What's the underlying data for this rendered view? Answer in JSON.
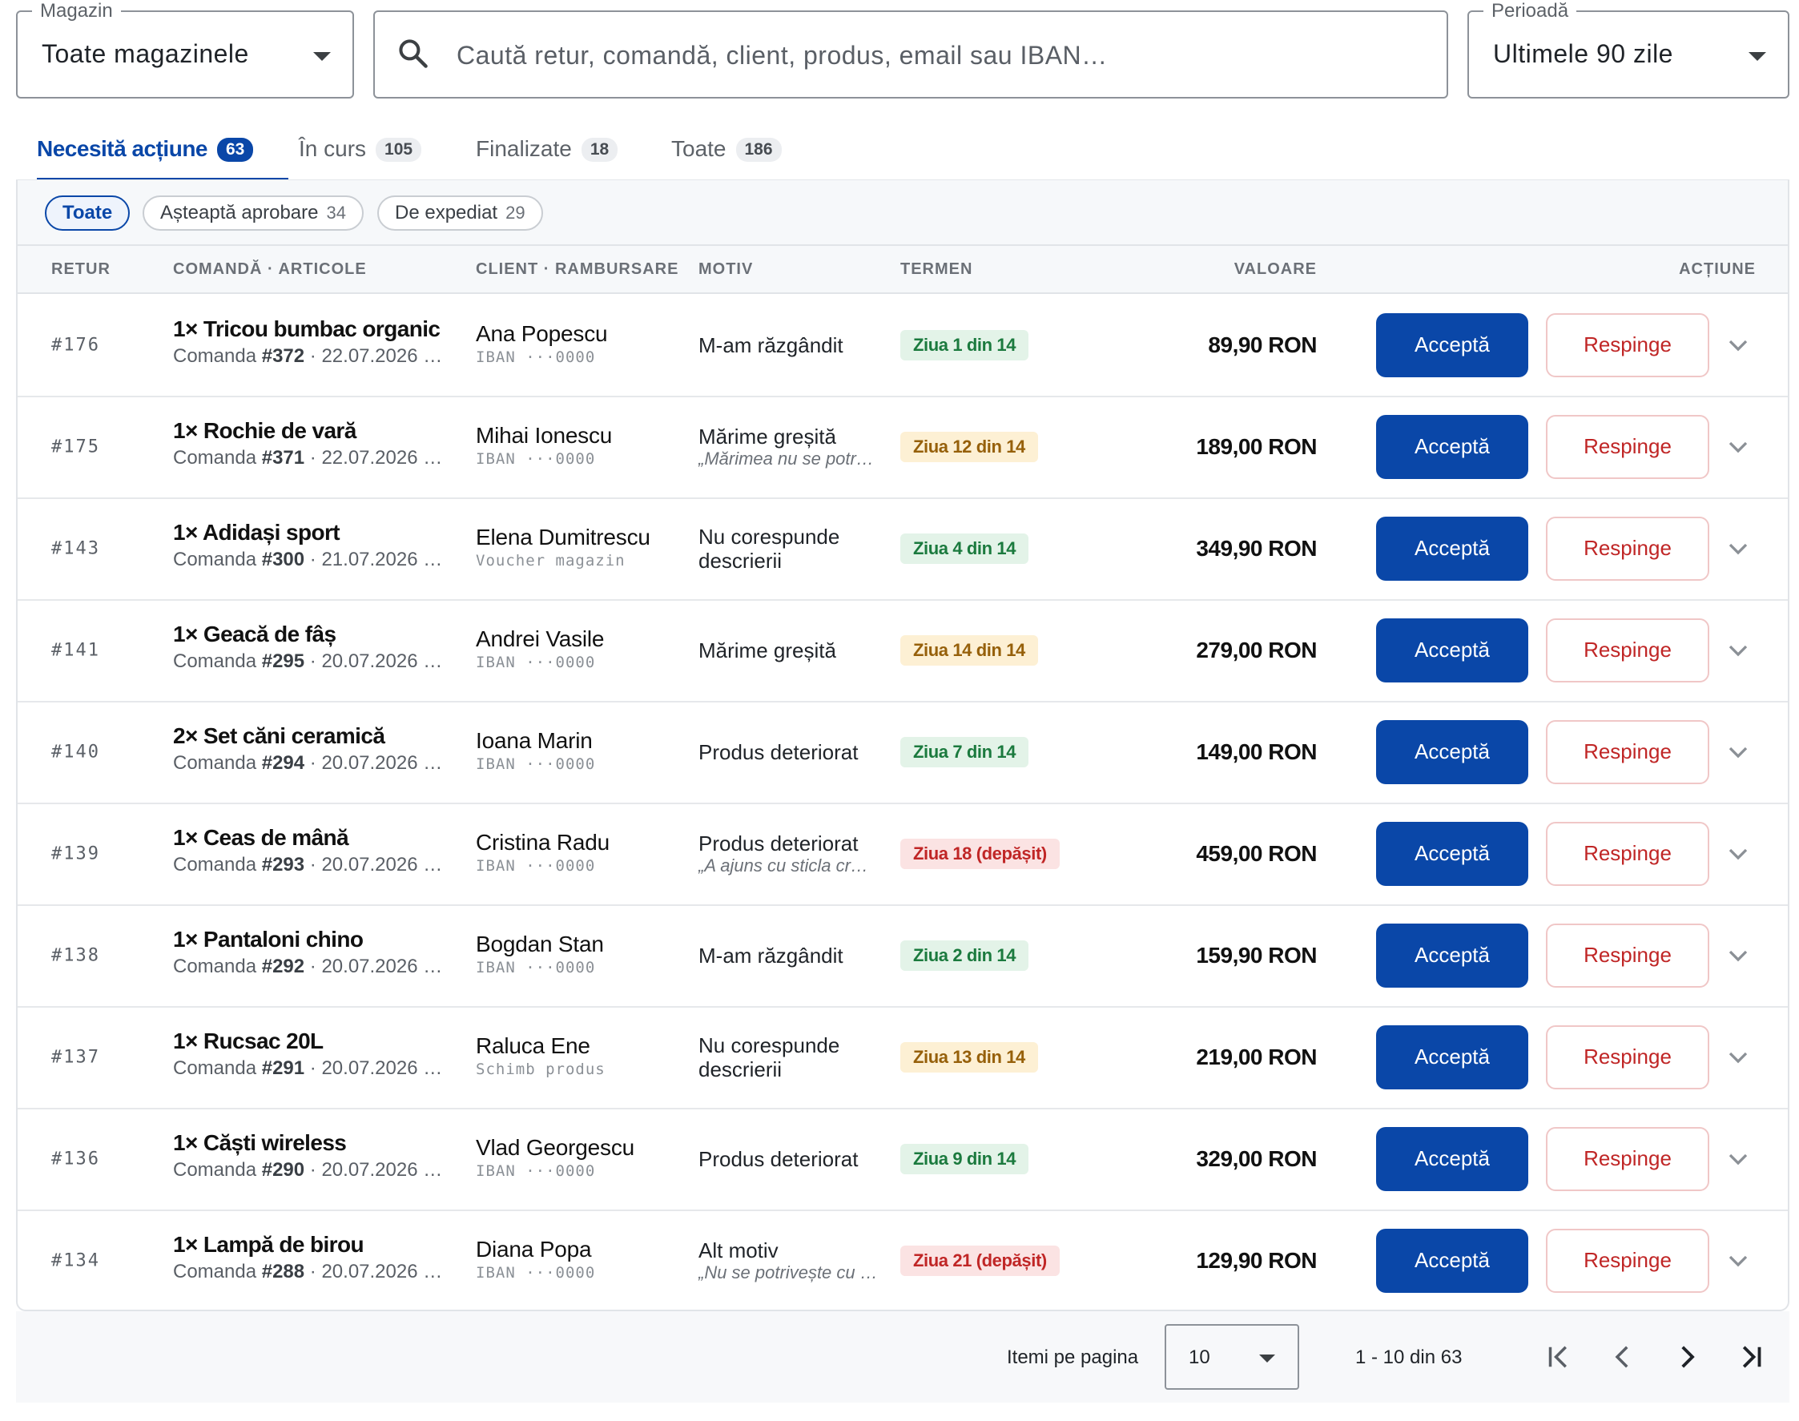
{
  "filters": {
    "store": {
      "label": "Magazin",
      "value": "Toate magazinele"
    },
    "search": {
      "placeholder": "Caută retur, comandă, client, produs, email sau IBAN…"
    },
    "period": {
      "label": "Perioadă",
      "value": "Ultimele 90 zile"
    }
  },
  "tabs": [
    {
      "label": "Necesită acțiune",
      "count": "63",
      "active": true
    },
    {
      "label": "În curs",
      "count": "105"
    },
    {
      "label": "Finalizate",
      "count": "18"
    },
    {
      "label": "Toate",
      "count": "186"
    }
  ],
  "chips": [
    {
      "label": "Toate",
      "count": ""
    },
    {
      "label": "Așteaptă aprobare",
      "count": "34"
    },
    {
      "label": "De expediat",
      "count": "29"
    }
  ],
  "columns": {
    "retur": "RETUR",
    "order": "COMANDĂ · ARTICOLE",
    "client": "CLIENT · RAMBURSARE",
    "reason": "MOTIV",
    "term": "TERMEN",
    "value": "VALOARE",
    "action": "ACȚIUNE"
  },
  "actions": {
    "accept": "Acceptă",
    "reject": "Respinge"
  },
  "colors": {
    "primary": "#0a47a8",
    "reject": "#c02626",
    "ok": "#1b7a3e",
    "warn": "#96600a",
    "late": "#c02626"
  },
  "rows": [
    {
      "id": "#176",
      "product": "1× Tricou bumbac organic",
      "order_prefix": "Comanda ",
      "order_no": "#372",
      "order_date": " · 22.07.2026 …",
      "client": "Ana Popescu",
      "refund": "IBAN ···0000",
      "reason": "M-am răzgândit",
      "note": "",
      "term": "Ziua 1 din 14",
      "term_status": "ok",
      "value": "89,90 RON"
    },
    {
      "id": "#175",
      "product": "1× Rochie de vară",
      "order_prefix": "Comanda ",
      "order_no": "#371",
      "order_date": " · 22.07.2026 …",
      "client": "Mihai Ionescu",
      "refund": "IBAN ···0000",
      "reason": "Mărime greșită",
      "note": "„Mărimea nu se potr…",
      "term": "Ziua 12 din 14",
      "term_status": "warn",
      "value": "189,00 RON"
    },
    {
      "id": "#143",
      "product": "1× Adidași sport",
      "order_prefix": "Comanda ",
      "order_no": "#300",
      "order_date": " · 21.07.2026 …",
      "client": "Elena Dumitrescu",
      "refund": "Voucher magazin",
      "reason": "Nu corespunde descrierii",
      "note": "",
      "term": "Ziua 4 din 14",
      "term_status": "ok",
      "value": "349,90 RON"
    },
    {
      "id": "#141",
      "product": "1× Geacă de fâș",
      "order_prefix": "Comanda ",
      "order_no": "#295",
      "order_date": " · 20.07.2026 …",
      "client": "Andrei Vasile",
      "refund": "IBAN ···0000",
      "reason": "Mărime greșită",
      "note": "",
      "term": "Ziua 14 din 14",
      "term_status": "warn",
      "value": "279,00 RON"
    },
    {
      "id": "#140",
      "product": "2× Set căni ceramică",
      "order_prefix": "Comanda ",
      "order_no": "#294",
      "order_date": " · 20.07.2026 …",
      "client": "Ioana Marin",
      "refund": "IBAN ···0000",
      "reason": "Produs deteriorat",
      "note": "",
      "term": "Ziua 7 din 14",
      "term_status": "ok",
      "value": "149,00 RON"
    },
    {
      "id": "#139",
      "product": "1× Ceas de mână",
      "order_prefix": "Comanda ",
      "order_no": "#293",
      "order_date": " · 20.07.2026 …",
      "client": "Cristina Radu",
      "refund": "IBAN ···0000",
      "reason": "Produs deteriorat",
      "note": "„A ajuns cu sticla cr…",
      "term": "Ziua 18 (depășit)",
      "term_status": "late",
      "value": "459,00 RON"
    },
    {
      "id": "#138",
      "product": "1× Pantaloni chino",
      "order_prefix": "Comanda ",
      "order_no": "#292",
      "order_date": " · 20.07.2026 …",
      "client": "Bogdan Stan",
      "refund": "IBAN ···0000",
      "reason": "M-am răzgândit",
      "note": "",
      "term": "Ziua 2 din 14",
      "term_status": "ok",
      "value": "159,90 RON"
    },
    {
      "id": "#137",
      "product": "1× Rucsac 20L",
      "order_prefix": "Comanda ",
      "order_no": "#291",
      "order_date": " · 20.07.2026 …",
      "client": "Raluca Ene",
      "refund": "Schimb produs",
      "reason": "Nu corespunde descrierii",
      "note": "",
      "term": "Ziua 13 din 14",
      "term_status": "warn",
      "value": "219,00 RON"
    },
    {
      "id": "#136",
      "product": "1× Căști wireless",
      "order_prefix": "Comanda ",
      "order_no": "#290",
      "order_date": " · 20.07.2026 …",
      "client": "Vlad Georgescu",
      "refund": "IBAN ···0000",
      "reason": "Produs deteriorat",
      "note": "",
      "term": "Ziua 9 din 14",
      "term_status": "ok",
      "value": "329,00 RON"
    },
    {
      "id": "#134",
      "product": "1× Lampă de birou",
      "order_prefix": "Comanda ",
      "order_no": "#288",
      "order_date": " · 20.07.2026 …",
      "client": "Diana Popa",
      "refund": "IBAN ···0000",
      "reason": "Alt motiv",
      "note": "„Nu se potrivește cu …",
      "term": "Ziua 21 (depășit)",
      "term_status": "late",
      "value": "129,90 RON"
    }
  ],
  "pagination": {
    "items_label": "Itemi pe pagina",
    "page_size": "10",
    "range": "1 - 10 din 63"
  }
}
